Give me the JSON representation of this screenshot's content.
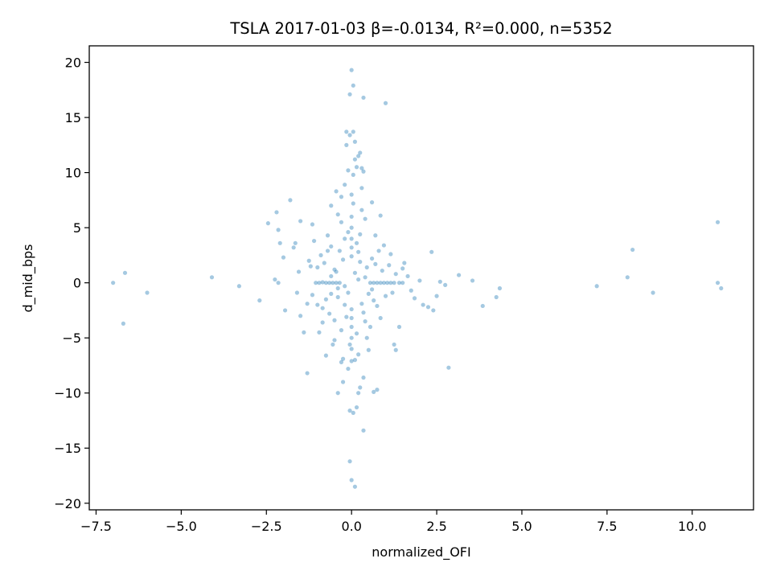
{
  "chart_data": {
    "type": "scatter",
    "title": "TSLA 2017-01-03  β=-0.0134, R²=0.000, n=5352",
    "xlabel": "normalized_OFI",
    "ylabel": "d_mid_bps",
    "xlim": [
      -7.7,
      11.8
    ],
    "ylim": [
      -20.6,
      21.5
    ],
    "x_ticks": [
      -7.5,
      -5.0,
      -2.5,
      0.0,
      2.5,
      5.0,
      7.5,
      10.0
    ],
    "x_tick_labels": [
      "−7.5",
      "−5.0",
      "−2.5",
      "0.0",
      "2.5",
      "5.0",
      "7.5",
      "10.0"
    ],
    "y_ticks": [
      -20,
      -15,
      -10,
      -5,
      0,
      5,
      10,
      15,
      20
    ],
    "y_tick_labels": [
      "−20",
      "−15",
      "−10",
      "−5",
      "0",
      "5",
      "10",
      "15",
      "20"
    ],
    "grid": false,
    "point_color": "#1f77b4",
    "point_alpha": 0.4,
    "series": [
      {
        "points": [
          [
            -7.0,
            0.0
          ],
          [
            -6.65,
            0.9
          ],
          [
            -6.7,
            -3.7
          ],
          [
            -6.0,
            -0.9
          ],
          [
            -4.1,
            0.5
          ],
          [
            -3.3,
            -0.3
          ],
          [
            -2.7,
            -1.6
          ],
          [
            -2.45,
            5.4
          ],
          [
            -2.2,
            6.4
          ],
          [
            -2.15,
            4.8
          ],
          [
            -2.1,
            3.6
          ],
          [
            -2.0,
            2.3
          ],
          [
            -2.25,
            0.3
          ],
          [
            -2.15,
            0.0
          ],
          [
            -1.95,
            -2.5
          ],
          [
            -1.8,
            7.5
          ],
          [
            -1.65,
            3.6
          ],
          [
            -1.7,
            3.2
          ],
          [
            -1.5,
            5.6
          ],
          [
            -1.55,
            1.0
          ],
          [
            -1.6,
            -0.9
          ],
          [
            -1.5,
            -3.0
          ],
          [
            -1.4,
            -4.5
          ],
          [
            -1.3,
            -8.2
          ],
          [
            -1.15,
            5.3
          ],
          [
            -1.1,
            3.8
          ],
          [
            -1.2,
            1.5
          ],
          [
            -1.0,
            -2.0
          ],
          [
            -0.95,
            -4.5
          ],
          [
            -0.85,
            -3.6
          ],
          [
            -0.75,
            -6.6
          ],
          [
            -0.7,
            4.3
          ],
          [
            -0.6,
            7.0
          ],
          [
            -0.45,
            8.3
          ],
          [
            -0.4,
            6.2
          ],
          [
            -0.3,
            7.8
          ],
          [
            -0.55,
            -5.6
          ],
          [
            -0.5,
            -5.2
          ],
          [
            -0.25,
            -9.0
          ],
          [
            -0.4,
            -10.0
          ],
          [
            -0.3,
            -7.2
          ],
          [
            -0.2,
            4.0
          ],
          [
            -0.1,
            10.2
          ],
          [
            -0.15,
            12.5
          ],
          [
            -0.15,
            13.7
          ],
          [
            -0.05,
            13.4
          ],
          [
            0.05,
            13.7
          ],
          [
            0.1,
            12.8
          ],
          [
            0.1,
            11.2
          ],
          [
            0.15,
            10.5
          ],
          [
            0.05,
            9.8
          ],
          [
            0.2,
            11.5
          ],
          [
            0.25,
            11.8
          ],
          [
            0.3,
            10.4
          ],
          [
            0.35,
            10.1
          ],
          [
            -0.05,
            17.1
          ],
          [
            0.05,
            17.9
          ],
          [
            0.0,
            19.3
          ],
          [
            0.35,
            16.8
          ],
          [
            1.0,
            16.3
          ],
          [
            -0.05,
            -11.6
          ],
          [
            0.05,
            -11.8
          ],
          [
            0.15,
            -11.3
          ],
          [
            0.2,
            -10.0
          ],
          [
            0.35,
            -13.4
          ],
          [
            -0.05,
            -16.2
          ],
          [
            0.0,
            -17.9
          ],
          [
            0.1,
            -18.5
          ],
          [
            0.25,
            -9.5
          ],
          [
            0.35,
            -8.6
          ],
          [
            0.5,
            -6.1
          ],
          [
            0.45,
            -5.0
          ],
          [
            0.65,
            -9.9
          ],
          [
            0.75,
            -9.7
          ],
          [
            0.7,
            4.3
          ],
          [
            0.85,
            6.1
          ],
          [
            0.6,
            7.3
          ],
          [
            0.95,
            3.4
          ],
          [
            1.15,
            2.6
          ],
          [
            1.25,
            -5.6
          ],
          [
            1.3,
            -6.1
          ],
          [
            1.4,
            -4.0
          ],
          [
            1.5,
            1.3
          ],
          [
            1.55,
            1.8
          ],
          [
            1.65,
            0.6
          ],
          [
            1.75,
            -0.7
          ],
          [
            1.85,
            -1.4
          ],
          [
            2.0,
            0.2
          ],
          [
            2.1,
            -2.0
          ],
          [
            2.25,
            -2.2
          ],
          [
            2.35,
            2.8
          ],
          [
            2.4,
            -2.5
          ],
          [
            2.5,
            -1.2
          ],
          [
            2.6,
            0.1
          ],
          [
            2.75,
            -0.2
          ],
          [
            2.85,
            -7.7
          ],
          [
            3.15,
            0.7
          ],
          [
            3.55,
            0.2
          ],
          [
            3.85,
            -2.1
          ],
          [
            4.25,
            -1.3
          ],
          [
            4.35,
            -0.5
          ],
          [
            7.2,
            -0.3
          ],
          [
            8.1,
            0.5
          ],
          [
            8.25,
            3.0
          ],
          [
            8.85,
            -0.9
          ],
          [
            10.75,
            5.5
          ],
          [
            10.75,
            0.0
          ],
          [
            10.85,
            -0.5
          ],
          [
            -1.05,
            0.0
          ],
          [
            -0.95,
            0.0
          ],
          [
            -0.85,
            0.05
          ],
          [
            -0.75,
            0.0
          ],
          [
            -0.65,
            0.0
          ],
          [
            -0.55,
            0.0
          ],
          [
            -0.45,
            0.0
          ],
          [
            -0.35,
            0.0
          ],
          [
            0.55,
            0.0
          ],
          [
            0.65,
            0.0
          ],
          [
            0.75,
            0.0
          ],
          [
            0.85,
            0.0
          ],
          [
            0.95,
            0.0
          ],
          [
            1.05,
            0.0
          ],
          [
            1.15,
            0.0
          ],
          [
            1.25,
            0.0
          ],
          [
            1.4,
            0.0
          ],
          [
            1.5,
            0.0
          ],
          [
            -0.9,
            2.5
          ],
          [
            -0.8,
            1.8
          ],
          [
            -0.7,
            2.9
          ],
          [
            -0.6,
            3.3
          ],
          [
            -0.5,
            1.2
          ],
          [
            -0.75,
            -1.5
          ],
          [
            -0.85,
            -2.3
          ],
          [
            -0.65,
            -2.8
          ],
          [
            -0.5,
            -3.4
          ],
          [
            -0.6,
            -1.0
          ],
          [
            0.6,
            2.2
          ],
          [
            0.7,
            1.7
          ],
          [
            0.8,
            2.9
          ],
          [
            0.9,
            1.1
          ],
          [
            1.0,
            -1.2
          ],
          [
            0.75,
            -2.1
          ],
          [
            0.85,
            -3.2
          ],
          [
            0.65,
            -1.6
          ],
          [
            0.55,
            -4.0
          ],
          [
            1.1,
            1.6
          ],
          [
            1.2,
            -0.9
          ],
          [
            1.3,
            0.8
          ],
          [
            -1.25,
            2.0
          ],
          [
            -1.15,
            -1.1
          ],
          [
            -1.3,
            -1.9
          ],
          [
            -1.0,
            1.4
          ],
          [
            0.4,
            5.8
          ],
          [
            -0.3,
            5.5
          ],
          [
            0.2,
            -6.5
          ],
          [
            -0.25,
            -6.9
          ],
          [
            0.1,
            -7.0
          ],
          [
            -0.1,
            -7.8
          ],
          [
            0.3,
            8.6
          ],
          [
            -0.2,
            8.9
          ],
          [
            0.0,
            8.0
          ],
          [
            0.05,
            7.2
          ],
          [
            0.0,
            6.0
          ],
          [
            0.0,
            5.0
          ],
          [
            0.0,
            4.0
          ],
          [
            0.0,
            3.2
          ],
          [
            0.0,
            2.4
          ],
          [
            0.0,
            -2.4
          ],
          [
            0.0,
            -3.2
          ],
          [
            0.0,
            -4.0
          ],
          [
            0.0,
            -5.0
          ],
          [
            0.0,
            -6.0
          ],
          [
            0.0,
            -7.1
          ],
          [
            0.15,
            3.6
          ],
          [
            0.2,
            2.8
          ],
          [
            0.25,
            1.9
          ],
          [
            0.3,
            -1.9
          ],
          [
            0.35,
            -2.7
          ],
          [
            0.4,
            -3.5
          ],
          [
            -0.15,
            -3.1
          ],
          [
            -0.2,
            -2.0
          ],
          [
            -0.25,
            2.1
          ],
          [
            -0.35,
            2.9
          ],
          [
            -0.4,
            -1.3
          ],
          [
            0.45,
            1.4
          ],
          [
            0.5,
            -1.0
          ],
          [
            -0.45,
            1.0
          ],
          [
            0.25,
            4.4
          ],
          [
            -0.1,
            4.6
          ],
          [
            0.15,
            -4.6
          ],
          [
            -0.05,
            -5.6
          ],
          [
            0.3,
            6.6
          ],
          [
            -0.3,
            -4.3
          ],
          [
            0.6,
            -0.6
          ],
          [
            -0.6,
            0.6
          ],
          [
            0.4,
            0.5
          ],
          [
            -0.4,
            -0.5
          ],
          [
            0.2,
            0.3
          ],
          [
            -0.2,
            -0.3
          ],
          [
            0.1,
            0.9
          ],
          [
            -0.1,
            -0.9
          ]
        ]
      }
    ]
  }
}
